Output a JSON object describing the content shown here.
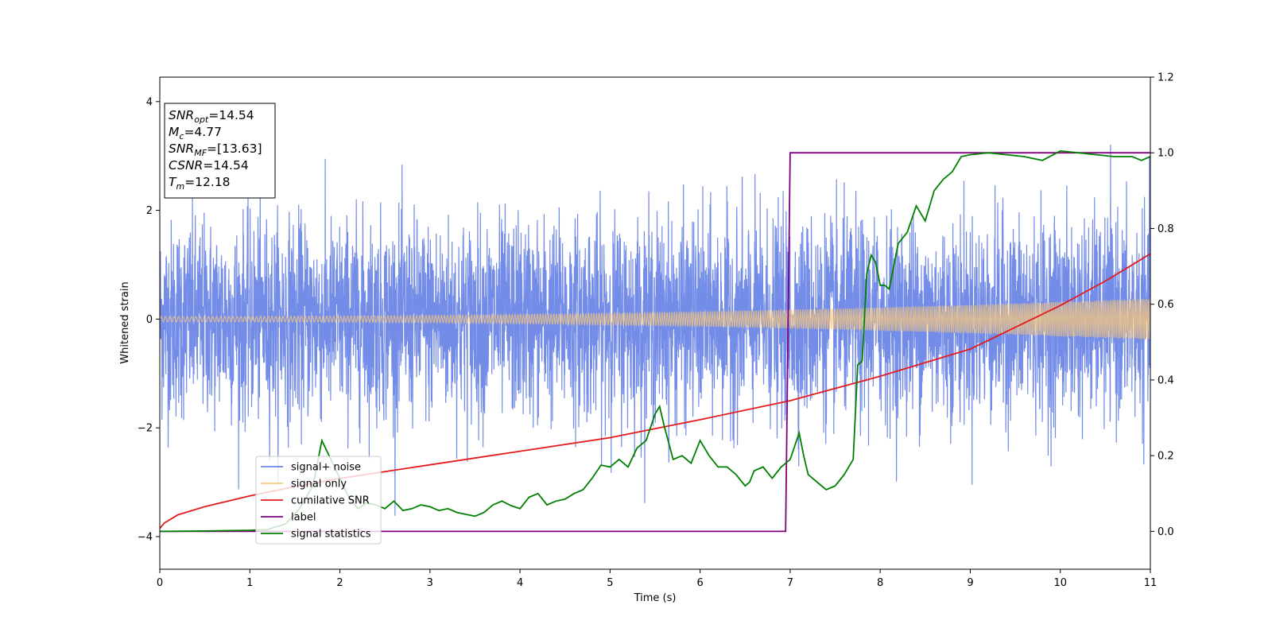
{
  "chart_data": {
    "type": "line",
    "xlabel": "Time (s)",
    "ylabel": "Whitened strain",
    "xlim": [
      0,
      11
    ],
    "ylim": [
      -4.6,
      4.45
    ],
    "y2lim": [
      -0.1,
      1.2
    ],
    "xticks": [
      "0",
      "1",
      "2",
      "3",
      "4",
      "5",
      "6",
      "7",
      "8",
      "9",
      "10",
      "11"
    ],
    "yticks": [
      "−4",
      "−2",
      "0",
      "2",
      "4"
    ],
    "y2ticks": [
      "0.0",
      "0.2",
      "0.4",
      "0.6",
      "0.8",
      "1.0",
      "1.2"
    ],
    "grid": false,
    "legend_position": "lower-left",
    "annotation": {
      "lines": [
        {
          "sym": "SNR",
          "sub": "opt",
          "value": "=14.54"
        },
        {
          "sym": "M",
          "sub": "c",
          "value": "=4.77"
        },
        {
          "sym": "SNR",
          "sub": "MF",
          "value": "=[13.63]"
        },
        {
          "sym": "CSNR",
          "sub": "",
          "value": "=14.54"
        },
        {
          "sym": "T",
          "sub": "m",
          "value": "=12.18"
        }
      ]
    },
    "series": [
      {
        "name": "signal+ noise",
        "color": "#6b86e6",
        "axis": "left",
        "kind": "noise",
        "std": 0.9,
        "max_abs": 4.2
      },
      {
        "name": "signal only",
        "color": "#f5c77e",
        "axis": "left",
        "kind": "chirp",
        "amp_start": 0.05,
        "amp_end": 0.38
      },
      {
        "name": "cumilative SNR",
        "color": "#e41a1c",
        "axis": "left",
        "x": [
          0,
          0.05,
          0.2,
          0.5,
          1,
          1.5,
          2,
          3,
          4,
          5,
          6,
          7,
          8,
          9,
          10,
          10.5,
          11
        ],
        "values": [
          -3.85,
          -3.75,
          -3.6,
          -3.45,
          -3.25,
          -3.08,
          -2.93,
          -2.68,
          -2.43,
          -2.18,
          -1.85,
          -1.5,
          -1.05,
          -0.55,
          0.25,
          0.7,
          1.2
        ]
      },
      {
        "name": "label",
        "color": "#800080",
        "axis": "right",
        "x": [
          0,
          6.95,
          7.0,
          11
        ],
        "values": [
          0,
          0,
          1,
          1
        ]
      },
      {
        "name": "signal statistics",
        "color": "#008000",
        "axis": "right",
        "x": [
          0,
          0.5,
          1,
          1.2,
          1.4,
          1.55,
          1.7,
          1.8,
          1.9,
          2,
          2.1,
          2.2,
          2.3,
          2.4,
          2.5,
          2.6,
          2.7,
          2.8,
          2.9,
          3,
          3.1,
          3.2,
          3.3,
          3.4,
          3.5,
          3.6,
          3.7,
          3.8,
          3.9,
          4,
          4.1,
          4.2,
          4.3,
          4.4,
          4.5,
          4.6,
          4.7,
          4.8,
          4.9,
          5,
          5.1,
          5.2,
          5.3,
          5.4,
          5.5,
          5.55,
          5.6,
          5.7,
          5.8,
          5.9,
          6,
          6.1,
          6.2,
          6.3,
          6.4,
          6.5,
          6.55,
          6.6,
          6.7,
          6.8,
          6.9,
          7,
          7.1,
          7.15,
          7.2,
          7.25,
          7.3,
          7.4,
          7.5,
          7.6,
          7.7,
          7.75,
          7.8,
          7.85,
          7.9,
          7.95,
          8,
          8.05,
          8.1,
          8.2,
          8.3,
          8.4,
          8.5,
          8.6,
          8.7,
          8.8,
          8.9,
          9,
          9.2,
          9.4,
          9.6,
          9.8,
          10,
          10.2,
          10.4,
          10.6,
          10.8,
          10.9,
          11
        ],
        "values": [
          0,
          0.001,
          0.003,
          0.005,
          0.02,
          0.06,
          0.12,
          0.24,
          0.19,
          0.14,
          0.09,
          0.06,
          0.075,
          0.07,
          0.06,
          0.08,
          0.055,
          0.06,
          0.07,
          0.065,
          0.055,
          0.06,
          0.05,
          0.045,
          0.04,
          0.05,
          0.07,
          0.08,
          0.068,
          0.06,
          0.09,
          0.1,
          0.07,
          0.08,
          0.085,
          0.1,
          0.11,
          0.14,
          0.175,
          0.17,
          0.19,
          0.17,
          0.22,
          0.24,
          0.31,
          0.33,
          0.28,
          0.19,
          0.2,
          0.18,
          0.24,
          0.2,
          0.17,
          0.17,
          0.15,
          0.12,
          0.13,
          0.16,
          0.17,
          0.14,
          0.17,
          0.19,
          0.26,
          0.2,
          0.15,
          0.14,
          0.13,
          0.11,
          0.12,
          0.15,
          0.19,
          0.44,
          0.45,
          0.68,
          0.73,
          0.71,
          0.65,
          0.65,
          0.64,
          0.76,
          0.79,
          0.86,
          0.82,
          0.9,
          0.93,
          0.95,
          0.99,
          0.995,
          1.0,
          0.995,
          0.99,
          0.98,
          1.005,
          1.0,
          0.995,
          0.99,
          0.99,
          0.98,
          0.99
        ]
      }
    ]
  }
}
